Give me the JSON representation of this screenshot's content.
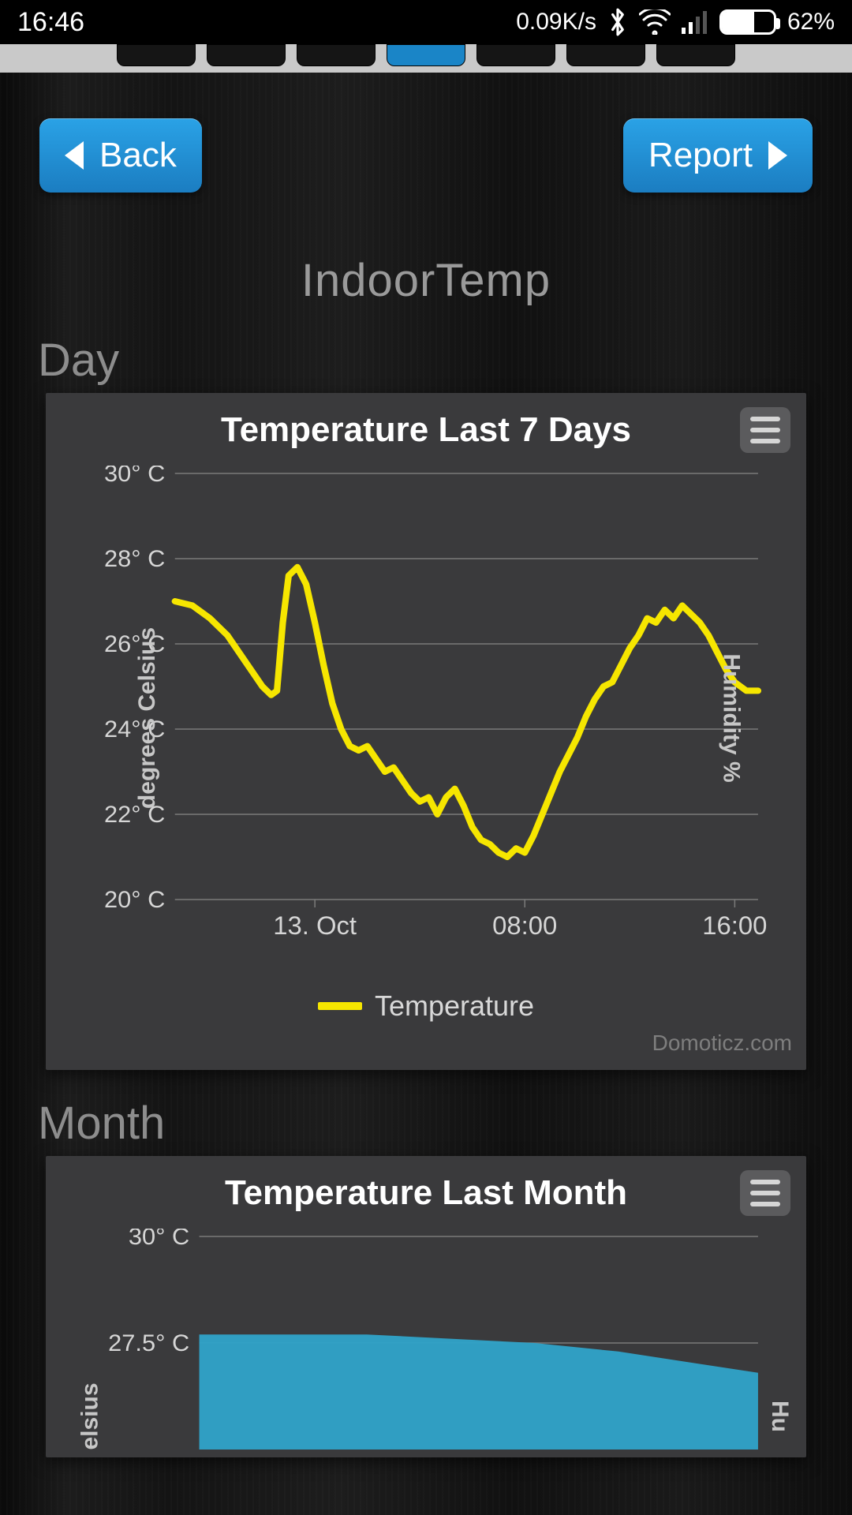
{
  "status": {
    "time": "16:46",
    "net_speed": "0.09K/s",
    "battery_pct_text": "62%",
    "battery_fill_pct": 62
  },
  "tabs": {
    "count": 7,
    "active_index": 3
  },
  "nav": {
    "back_label": "Back",
    "report_label": "Report"
  },
  "page_title": "IndoorTemp",
  "sections": {
    "day": "Day",
    "month": "Month"
  },
  "colors": {
    "accent": "#1e90d6",
    "card_bg": "#3a3a3c",
    "grid": "#7a7a7a",
    "axis_text": "#d6d6d6",
    "line_temp": "#f6e600",
    "area_fill": "#2fa3c9"
  },
  "chart_day": {
    "type": "line",
    "title": "Temperature Last 7 Days",
    "y_label": "degrees Celsius",
    "y2_label": "Humidity %",
    "legend_label": "Temperature",
    "credit": "Domoticz.com",
    "ylim": [
      20,
      30
    ],
    "ytick_step": 2,
    "ytick_labels": [
      "20° C",
      "22° C",
      "24° C",
      "26° C",
      "28° C",
      "30° C"
    ],
    "x_ticks": [
      {
        "pos": 0.24,
        "label": "13. Oct"
      },
      {
        "pos": 0.6,
        "label": "08:00"
      },
      {
        "pos": 0.96,
        "label": "16:00"
      }
    ],
    "line_color": "#f6e600",
    "line_width": 8,
    "series": [
      {
        "x": 0.0,
        "y": 27.0
      },
      {
        "x": 0.03,
        "y": 26.9
      },
      {
        "x": 0.06,
        "y": 26.6
      },
      {
        "x": 0.09,
        "y": 26.2
      },
      {
        "x": 0.12,
        "y": 25.6
      },
      {
        "x": 0.15,
        "y": 25.0
      },
      {
        "x": 0.165,
        "y": 24.8
      },
      {
        "x": 0.175,
        "y": 24.9
      },
      {
        "x": 0.185,
        "y": 26.5
      },
      {
        "x": 0.195,
        "y": 27.6
      },
      {
        "x": 0.21,
        "y": 27.8
      },
      {
        "x": 0.225,
        "y": 27.4
      },
      {
        "x": 0.24,
        "y": 26.5
      },
      {
        "x": 0.255,
        "y": 25.5
      },
      {
        "x": 0.27,
        "y": 24.6
      },
      {
        "x": 0.285,
        "y": 24.0
      },
      {
        "x": 0.3,
        "y": 23.6
      },
      {
        "x": 0.315,
        "y": 23.5
      },
      {
        "x": 0.33,
        "y": 23.6
      },
      {
        "x": 0.345,
        "y": 23.3
      },
      {
        "x": 0.36,
        "y": 23.0
      },
      {
        "x": 0.375,
        "y": 23.1
      },
      {
        "x": 0.39,
        "y": 22.8
      },
      {
        "x": 0.405,
        "y": 22.5
      },
      {
        "x": 0.42,
        "y": 22.3
      },
      {
        "x": 0.435,
        "y": 22.4
      },
      {
        "x": 0.45,
        "y": 22.0
      },
      {
        "x": 0.465,
        "y": 22.4
      },
      {
        "x": 0.48,
        "y": 22.6
      },
      {
        "x": 0.495,
        "y": 22.2
      },
      {
        "x": 0.51,
        "y": 21.7
      },
      {
        "x": 0.525,
        "y": 21.4
      },
      {
        "x": 0.54,
        "y": 21.3
      },
      {
        "x": 0.555,
        "y": 21.1
      },
      {
        "x": 0.57,
        "y": 21.0
      },
      {
        "x": 0.585,
        "y": 21.2
      },
      {
        "x": 0.6,
        "y": 21.1
      },
      {
        "x": 0.615,
        "y": 21.5
      },
      {
        "x": 0.63,
        "y": 22.0
      },
      {
        "x": 0.645,
        "y": 22.5
      },
      {
        "x": 0.66,
        "y": 23.0
      },
      {
        "x": 0.675,
        "y": 23.4
      },
      {
        "x": 0.69,
        "y": 23.8
      },
      {
        "x": 0.705,
        "y": 24.3
      },
      {
        "x": 0.72,
        "y": 24.7
      },
      {
        "x": 0.735,
        "y": 25.0
      },
      {
        "x": 0.75,
        "y": 25.1
      },
      {
        "x": 0.765,
        "y": 25.5
      },
      {
        "x": 0.78,
        "y": 25.9
      },
      {
        "x": 0.795,
        "y": 26.2
      },
      {
        "x": 0.81,
        "y": 26.6
      },
      {
        "x": 0.825,
        "y": 26.5
      },
      {
        "x": 0.84,
        "y": 26.8
      },
      {
        "x": 0.855,
        "y": 26.6
      },
      {
        "x": 0.87,
        "y": 26.9
      },
      {
        "x": 0.885,
        "y": 26.7
      },
      {
        "x": 0.9,
        "y": 26.5
      },
      {
        "x": 0.915,
        "y": 26.2
      },
      {
        "x": 0.93,
        "y": 25.8
      },
      {
        "x": 0.945,
        "y": 25.4
      },
      {
        "x": 0.96,
        "y": 25.1
      },
      {
        "x": 0.98,
        "y": 24.9
      },
      {
        "x": 1.0,
        "y": 24.9
      }
    ]
  },
  "chart_month": {
    "type": "area",
    "title": "Temperature Last Month",
    "y2_label": "Hu",
    "ylim": [
      25,
      30
    ],
    "ytick_labels_visible": [
      "30° C",
      "27.5° C"
    ],
    "area_color": "#2fa3c9",
    "series": [
      {
        "x": 0.0,
        "y": 27.7
      },
      {
        "x": 0.15,
        "y": 27.7
      },
      {
        "x": 0.3,
        "y": 27.7
      },
      {
        "x": 0.45,
        "y": 27.6
      },
      {
        "x": 0.6,
        "y": 27.5
      },
      {
        "x": 0.75,
        "y": 27.3
      },
      {
        "x": 0.9,
        "y": 27.0
      },
      {
        "x": 1.0,
        "y": 26.8
      }
    ],
    "y_label_partial": "elsius"
  }
}
